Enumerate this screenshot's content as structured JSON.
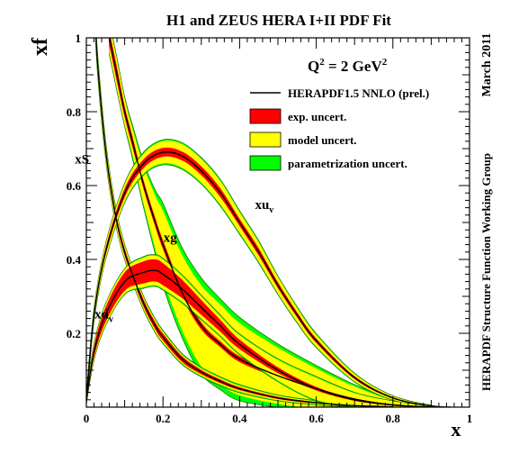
{
  "chart_data": {
    "type": "area",
    "title": "H1 and ZEUS HERA I+II PDF Fit",
    "scale_label": "Q",
    "scale_sup": "2",
    "scale_value": " = 2 GeV",
    "scale_unit_sup": "2",
    "xlabel": "x",
    "ylabel": "xf",
    "side_date": "March 2011",
    "side_group": "HERAPDF Structure Function Working Group",
    "xlim": [
      0,
      1
    ],
    "ylim": [
      0,
      1
    ],
    "x_ticks": [
      "0",
      "0.2",
      "0.4",
      "0.6",
      "0.8",
      "1"
    ],
    "y_ticks": [
      "0.2",
      "0.4",
      "0.6",
      "0.8",
      "1"
    ],
    "legend_position": "top-right",
    "legend": [
      {
        "label": "HERAPDF1.5 NNLO (prel.)",
        "kind": "line",
        "color": "#000000"
      },
      {
        "label": "exp. uncert.",
        "kind": "box",
        "color": "#ff0000"
      },
      {
        "label": "model uncert.",
        "kind": "box",
        "color": "#ffff00"
      },
      {
        "label": "parametrization uncert.",
        "kind": "box",
        "color": "#00ff00"
      }
    ],
    "colors": {
      "central": "#000000",
      "exp": "#ff0000",
      "model": "#ffff00",
      "param": "#00ff00"
    },
    "series": [
      {
        "name": "xg",
        "label_main": "xg",
        "label_sub": "",
        "x": [
          0.06,
          0.07,
          0.08,
          0.1,
          0.12,
          0.15,
          0.18,
          0.2,
          0.25,
          0.3,
          0.35,
          0.4,
          0.5,
          0.6,
          0.7,
          0.8,
          0.9
        ],
        "central": [
          1.0,
          0.95,
          0.9,
          0.8,
          0.72,
          0.6,
          0.5,
          0.44,
          0.31,
          0.22,
          0.17,
          0.13,
          0.085,
          0.05,
          0.022,
          0.006,
          0.0
        ],
        "exp": [
          0.02,
          0.02,
          0.02,
          0.015,
          0.015,
          0.012,
          0.012,
          0.012,
          0.012,
          0.01,
          0.008,
          0.008,
          0.006,
          0.005,
          0.004,
          0.003,
          0.002
        ],
        "model": [
          0.02,
          0.02,
          0.02,
          0.02,
          0.02,
          0.04,
          0.06,
          0.08,
          0.09,
          0.1,
          0.1,
          0.09,
          0.07,
          0.05,
          0.03,
          0.01,
          0.003
        ],
        "param": [
          0.005,
          0.005,
          0.005,
          0.005,
          0.01,
          0.01,
          0.015,
          0.02,
          0.02,
          0.02,
          0.015,
          0.015,
          0.01,
          0.008,
          0.005,
          0.003,
          0.001
        ]
      },
      {
        "name": "xS",
        "label_main": "xS",
        "label_sub": "",
        "x": [
          0.025,
          0.03,
          0.04,
          0.05,
          0.06,
          0.08,
          0.1,
          0.12,
          0.15,
          0.18,
          0.2,
          0.25,
          0.3,
          0.35,
          0.4,
          0.5,
          0.6,
          0.7,
          0.8
        ],
        "central": [
          1.0,
          0.92,
          0.8,
          0.7,
          0.62,
          0.5,
          0.42,
          0.36,
          0.28,
          0.22,
          0.19,
          0.13,
          0.095,
          0.07,
          0.05,
          0.025,
          0.012,
          0.004,
          0.001
        ],
        "exp": [
          0.015,
          0.015,
          0.015,
          0.012,
          0.012,
          0.01,
          0.01,
          0.01,
          0.01,
          0.01,
          0.01,
          0.008,
          0.006,
          0.005,
          0.004,
          0.003,
          0.002,
          0.001,
          0.001
        ],
        "model": [
          0.01,
          0.01,
          0.01,
          0.01,
          0.01,
          0.01,
          0.008,
          0.008,
          0.006,
          0.006,
          0.005,
          0.004,
          0.004,
          0.004,
          0.004,
          0.003,
          0.002,
          0.002,
          0.001
        ],
        "param": [
          0.003,
          0.003,
          0.003,
          0.003,
          0.003,
          0.003,
          0.003,
          0.003,
          0.003,
          0.003,
          0.003,
          0.003,
          0.003,
          0.003,
          0.003,
          0.002,
          0.002,
          0.001,
          0.001
        ]
      },
      {
        "name": "xuv",
        "label_main": "xu",
        "label_sub": "v",
        "x": [
          0.0,
          0.02,
          0.05,
          0.1,
          0.15,
          0.2,
          0.25,
          0.3,
          0.35,
          0.4,
          0.45,
          0.5,
          0.55,
          0.6,
          0.7,
          0.8,
          0.9,
          0.95
        ],
        "central": [
          0.02,
          0.25,
          0.42,
          0.58,
          0.66,
          0.69,
          0.68,
          0.64,
          0.58,
          0.5,
          0.42,
          0.33,
          0.25,
          0.18,
          0.08,
          0.025,
          0.003,
          0.0
        ],
        "exp": [
          0.005,
          0.008,
          0.01,
          0.012,
          0.012,
          0.012,
          0.012,
          0.012,
          0.012,
          0.01,
          0.01,
          0.008,
          0.007,
          0.006,
          0.004,
          0.002,
          0.001,
          0.0
        ],
        "model": [
          0.005,
          0.008,
          0.01,
          0.012,
          0.015,
          0.018,
          0.02,
          0.02,
          0.02,
          0.018,
          0.016,
          0.014,
          0.012,
          0.01,
          0.006,
          0.003,
          0.001,
          0.0
        ],
        "param": [
          0.002,
          0.002,
          0.002,
          0.003,
          0.004,
          0.004,
          0.004,
          0.004,
          0.004,
          0.004,
          0.004,
          0.003,
          0.003,
          0.003,
          0.002,
          0.001,
          0.0,
          0.0
        ]
      },
      {
        "name": "xdv",
        "label_main": "xd",
        "label_sub": "v",
        "x": [
          0.0,
          0.02,
          0.05,
          0.1,
          0.15,
          0.18,
          0.2,
          0.25,
          0.3,
          0.35,
          0.4,
          0.5,
          0.6,
          0.7,
          0.8,
          0.9
        ],
        "central": [
          0.02,
          0.15,
          0.25,
          0.34,
          0.365,
          0.37,
          0.36,
          0.32,
          0.27,
          0.22,
          0.17,
          0.1,
          0.05,
          0.02,
          0.006,
          0.0
        ],
        "exp": [
          0.005,
          0.015,
          0.02,
          0.025,
          0.03,
          0.03,
          0.03,
          0.025,
          0.02,
          0.016,
          0.013,
          0.008,
          0.005,
          0.003,
          0.002,
          0.0
        ],
        "model": [
          0.005,
          0.005,
          0.008,
          0.008,
          0.01,
          0.01,
          0.01,
          0.01,
          0.01,
          0.01,
          0.012,
          0.02,
          0.025,
          0.015,
          0.008,
          0.002
        ],
        "param": [
          0.002,
          0.002,
          0.002,
          0.002,
          0.003,
          0.003,
          0.003,
          0.003,
          0.003,
          0.003,
          0.003,
          0.003,
          0.003,
          0.002,
          0.001,
          0.0
        ]
      }
    ]
  }
}
